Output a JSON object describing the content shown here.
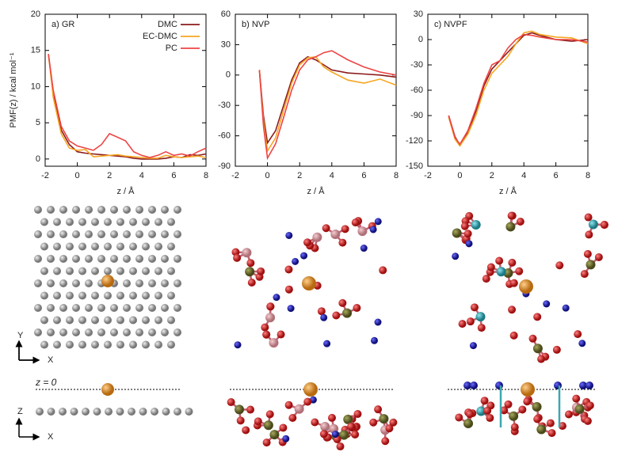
{
  "chart_data": [
    {
      "type": "line",
      "title": "a) GR",
      "y_label": "PMF(z) / kcal mol⁻¹",
      "x_label": "z / Å",
      "x": [
        -1.8,
        -1.5,
        -1,
        -0.5,
        0,
        0.5,
        1,
        1.5,
        2,
        2.5,
        3,
        3.5,
        4,
        4.5,
        5,
        5.5,
        6,
        6.5,
        7,
        7.5,
        8
      ],
      "series": [
        {
          "name": "DMC",
          "color": "#8b1a1a",
          "values": [
            14.5,
            9,
            4,
            2,
            1,
            0.8,
            0.7,
            0.6,
            0.5,
            0.4,
            0.3,
            0.1,
            0,
            0,
            0,
            0.1,
            0.3,
            0.2,
            0.6,
            0.5,
            0.7
          ]
        },
        {
          "name": "EC-DMC",
          "color": "#f5a623",
          "values": [
            14.5,
            8.5,
            3.5,
            1.5,
            1.2,
            1.3,
            0.3,
            0.4,
            0.5,
            0.6,
            0.4,
            0.3,
            0.2,
            0.1,
            0.1,
            0.5,
            0.3,
            0.2,
            0.3,
            0.4,
            0.2
          ]
        },
        {
          "name": "PC",
          "color": "#ee4444",
          "values": [
            14.5,
            9.5,
            4.5,
            2.5,
            1.8,
            1.5,
            1.2,
            2,
            3.5,
            3,
            2.5,
            1,
            0.5,
            0.2,
            0.5,
            1,
            0.5,
            0.7,
            0.4,
            1,
            1.5
          ]
        }
      ],
      "xlim": [
        -2,
        8
      ],
      "xticks": [
        -2,
        0,
        2,
        4,
        6,
        8
      ],
      "ylim": [
        -1,
        20
      ],
      "yticks": [
        0,
        5,
        10,
        15,
        20
      ],
      "legend": "upper right"
    },
    {
      "type": "line",
      "title": "b) NVP",
      "x_label": "z / Å",
      "x": [
        -0.5,
        -0.25,
        0,
        0.5,
        1,
        1.5,
        2,
        2.5,
        3,
        3.5,
        4,
        5,
        6,
        7,
        8
      ],
      "series": [
        {
          "color": "#8b1a1a",
          "values": [
            5,
            -40,
            -67,
            -55,
            -30,
            -5,
            12,
            18,
            15,
            10,
            5,
            2,
            1,
            0,
            -2
          ]
        },
        {
          "color": "#f5a623",
          "values": [
            5,
            -45,
            -75,
            -62,
            -35,
            -8,
            10,
            17,
            18,
            8,
            3,
            -5,
            -8,
            -4,
            -10
          ]
        },
        {
          "color": "#ee4444",
          "values": [
            5,
            -50,
            -82,
            -68,
            -42,
            -15,
            5,
            15,
            18,
            22,
            24,
            15,
            8,
            3,
            0
          ]
        }
      ],
      "xlim": [
        -2,
        8
      ],
      "xticks": [
        -2,
        0,
        2,
        4,
        6,
        8
      ],
      "ylim": [
        -90,
        60
      ],
      "yticks": [
        -90,
        -60,
        -30,
        0,
        30,
        60
      ]
    },
    {
      "type": "line",
      "title": "c) NVPF",
      "x_label": "z / Å",
      "x": [
        -0.7,
        -0.3,
        0,
        0.5,
        1,
        1.5,
        2,
        2.5,
        3,
        3.5,
        4,
        4.5,
        5,
        6,
        7,
        8
      ],
      "series": [
        {
          "color": "#8b1a1a",
          "values": [
            -90,
            -115,
            -125,
            -110,
            -85,
            -55,
            -35,
            -25,
            -15,
            -5,
            5,
            8,
            5,
            0,
            -2,
            0
          ]
        },
        {
          "color": "#f5a623",
          "values": [
            -92,
            -118,
            -126,
            -112,
            -90,
            -60,
            -40,
            -30,
            -20,
            -5,
            8,
            10,
            6,
            3,
            2,
            -5
          ]
        },
        {
          "color": "#ee4444",
          "values": [
            -90,
            -116,
            -124,
            -108,
            -82,
            -52,
            -30,
            -25,
            -10,
            0,
            6,
            5,
            3,
            0,
            0,
            -3
          ]
        }
      ],
      "xlim": [
        -2,
        8
      ],
      "xticks": [
        -2,
        0,
        2,
        4,
        6,
        8
      ],
      "ylim": [
        -150,
        30
      ],
      "yticks": [
        -150,
        -120,
        -90,
        -60,
        -30,
        0,
        30
      ]
    }
  ],
  "structure_labels": {
    "top_view_axes": [
      "Y",
      "X"
    ],
    "side_view_axes": [
      "Z",
      "X"
    ],
    "plane": "z = 0"
  }
}
